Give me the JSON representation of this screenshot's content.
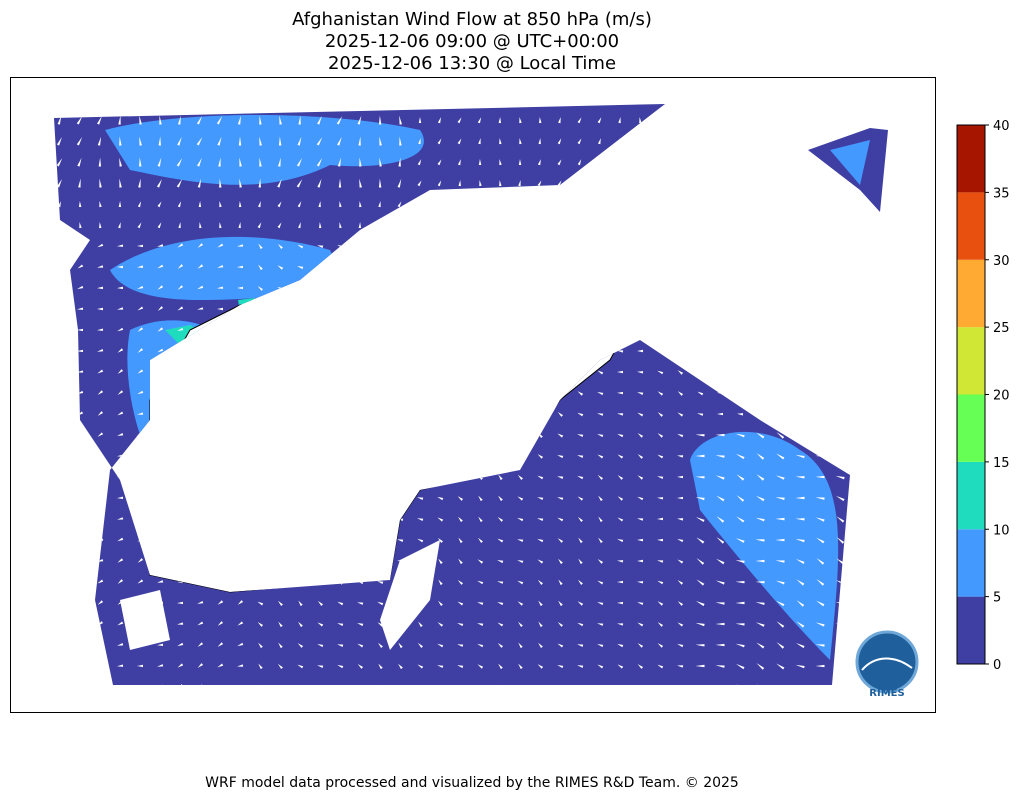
{
  "title": [
    "Afghanistan Wind Flow at 850 hPa (m/s)",
    "2025-12-06 09:00 @ UTC+00:00",
    "2025-12-06 13:30 @ Local Time"
  ],
  "colorbar": {
    "ticks": [
      0,
      5,
      10,
      15,
      20,
      25,
      30,
      35,
      40
    ],
    "colors": [
      "#3f3fa3",
      "#4499ff",
      "#1fdcbf",
      "#66ff55",
      "#d0e835",
      "#ffaa33",
      "#e85010",
      "#a51500"
    ]
  },
  "logo": "RIMES",
  "footer": "WRF model data processed and visualized by the RIMES R&D Team. © 2025"
}
